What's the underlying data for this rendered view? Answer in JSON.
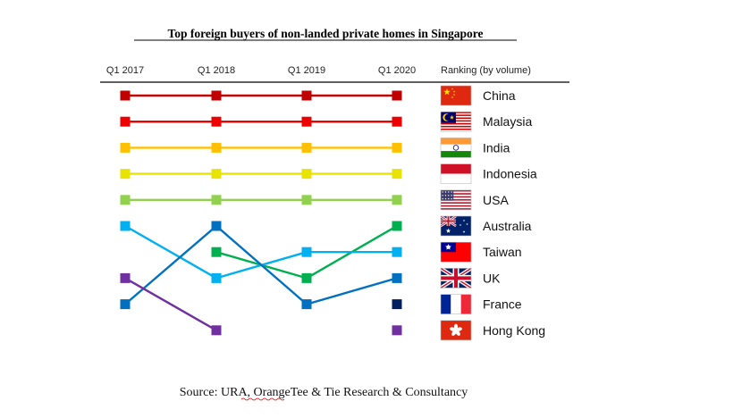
{
  "chart_data": {
    "type": "line",
    "title": "Top foreign buyers of non-landed private homes in Singapore",
    "x": [
      "Q1 2017",
      "Q1 2018",
      "Q1 2019",
      "Q1 2020"
    ],
    "ranking_header": "Ranking (by volume)",
    "y_axis": "rank (1 = top), inverted",
    "ylim": [
      10,
      1
    ],
    "source": "Source: URA, OrangeTee & Tie Research & Consultancy",
    "series": [
      {
        "name": "China",
        "color": "#c00000",
        "ranks": [
          1,
          1,
          1,
          1
        ],
        "flag": "china-flag"
      },
      {
        "name": "Malaysia",
        "color": "#ee0000",
        "ranks": [
          2,
          2,
          2,
          2
        ],
        "flag": "malaysia-flag"
      },
      {
        "name": "India",
        "color": "#ffc000",
        "ranks": [
          3,
          3,
          3,
          3
        ],
        "flag": "india-flag"
      },
      {
        "name": "Indonesia",
        "color": "#e8e400",
        "ranks": [
          4,
          4,
          4,
          4
        ],
        "flag": "indonesia-flag"
      },
      {
        "name": "USA",
        "color": "#92d050",
        "ranks": [
          5,
          5,
          5,
          5
        ],
        "flag": "usa-flag"
      },
      {
        "name": "Australia",
        "color": "#00b050",
        "ranks": [
          null,
          7,
          8,
          6
        ],
        "flag": "australia-flag"
      },
      {
        "name": "Taiwan",
        "color": "#00b0f0",
        "ranks": [
          6,
          8,
          7,
          7
        ],
        "flag": "taiwan-flag"
      },
      {
        "name": "UK",
        "color": "#0070c0",
        "ranks": [
          9,
          6,
          9,
          8
        ],
        "flag": "uk-flag"
      },
      {
        "name": "France",
        "color": "#002060",
        "ranks": [
          null,
          null,
          null,
          9
        ],
        "flag": "france-flag"
      },
      {
        "name": "Hong Kong",
        "color": "#7030a0",
        "ranks": [
          8,
          10,
          null,
          10
        ],
        "flag": "hong-kong-flag"
      }
    ]
  }
}
